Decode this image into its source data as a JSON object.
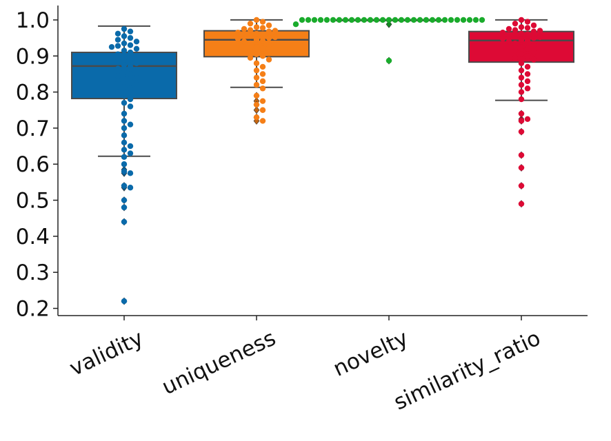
{
  "chart_data": {
    "type": "box",
    "title": "",
    "xlabel": "",
    "ylabel": "",
    "ylim": [
      0.18,
      1.04
    ],
    "yticks": [
      "0.2",
      "0.3",
      "0.4",
      "0.5",
      "0.6",
      "0.7",
      "0.8",
      "0.9",
      "1.0"
    ],
    "grid": false,
    "legend": "none",
    "categories": [
      "validity",
      "uniqueness",
      "novelty",
      "similarity_ratio"
    ],
    "series": [
      {
        "category": "validity",
        "color": "#0a6aaa",
        "box": {
          "whisker_low": 0.622,
          "q1": 0.782,
          "median": 0.872,
          "q3": 0.91,
          "whisker_high": 0.983
        },
        "outliers": [
          0.585,
          0.575,
          0.54,
          0.535,
          0.5,
          0.48,
          0.44,
          0.22
        ],
        "points": [
          0.975,
          0.968,
          0.962,
          0.955,
          0.95,
          0.945,
          0.94,
          0.935,
          0.93,
          0.928,
          0.925,
          0.92,
          0.915,
          0.91,
          0.905,
          0.9,
          0.895,
          0.89,
          0.885,
          0.88,
          0.875,
          0.87,
          0.865,
          0.86,
          0.855,
          0.85,
          0.845,
          0.84,
          0.835,
          0.83,
          0.825,
          0.82,
          0.815,
          0.81,
          0.8,
          0.79,
          0.78,
          0.77,
          0.76,
          0.74,
          0.72,
          0.71,
          0.7,
          0.68,
          0.66,
          0.65,
          0.64,
          0.63,
          0.62,
          0.6,
          0.58,
          0.575,
          0.54,
          0.535,
          0.5,
          0.48,
          0.44,
          0.22
        ]
      },
      {
        "category": "uniqueness",
        "color": "#f57f17",
        "box": {
          "whisker_low": 0.813,
          "q1": 0.898,
          "median": 0.945,
          "q3": 0.97,
          "whisker_high": 1.0
        },
        "outliers": [
          0.79,
          0.775,
          0.765,
          0.75,
          0.73,
          0.72
        ],
        "points": [
          1.0,
          0.995,
          0.99,
          0.985,
          0.98,
          0.978,
          0.975,
          0.972,
          0.97,
          0.968,
          0.965,
          0.962,
          0.96,
          0.958,
          0.955,
          0.952,
          0.95,
          0.948,
          0.945,
          0.942,
          0.94,
          0.935,
          0.93,
          0.925,
          0.92,
          0.915,
          0.91,
          0.905,
          0.9,
          0.895,
          0.89,
          0.88,
          0.87,
          0.86,
          0.85,
          0.84,
          0.83,
          0.82,
          0.81,
          0.79,
          0.775,
          0.765,
          0.75,
          0.73,
          0.72
        ]
      },
      {
        "category": "novelty",
        "color": "#1aab2c",
        "box": {
          "whisker_low": 1.0,
          "q1": 1.0,
          "median": 1.0,
          "q3": 1.0,
          "whisker_high": 1.0
        },
        "outliers": [
          0.988,
          0.887
        ],
        "points": [
          1.0,
          1.0,
          1.0,
          1.0,
          1.0,
          1.0,
          1.0,
          1.0,
          1.0,
          1.0,
          1.0,
          1.0,
          1.0,
          1.0,
          1.0,
          1.0,
          1.0,
          1.0,
          1.0,
          1.0,
          1.0,
          1.0,
          1.0,
          1.0,
          1.0,
          1.0,
          1.0,
          1.0,
          1.0,
          1.0,
          0.988,
          0.887
        ]
      },
      {
        "category": "similarity_ratio",
        "color": "#dd0a35",
        "box": {
          "whisker_low": 0.777,
          "q1": 0.883,
          "median": 0.943,
          "q3": 0.968,
          "whisker_high": 1.0
        },
        "outliers": [
          0.74,
          0.725,
          0.72,
          0.69,
          0.625,
          0.59,
          0.54,
          0.49
        ],
        "points": [
          1.0,
          0.995,
          0.99,
          0.985,
          0.98,
          0.978,
          0.975,
          0.972,
          0.97,
          0.968,
          0.965,
          0.962,
          0.96,
          0.958,
          0.955,
          0.952,
          0.95,
          0.948,
          0.945,
          0.942,
          0.94,
          0.935,
          0.93,
          0.925,
          0.92,
          0.915,
          0.91,
          0.905,
          0.9,
          0.895,
          0.89,
          0.88,
          0.87,
          0.86,
          0.85,
          0.84,
          0.83,
          0.82,
          0.81,
          0.8,
          0.78,
          0.74,
          0.725,
          0.72,
          0.69,
          0.625,
          0.59,
          0.54,
          0.49
        ]
      }
    ]
  }
}
